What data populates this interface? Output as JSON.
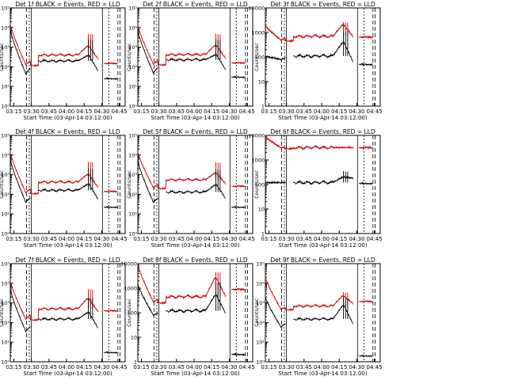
{
  "figure": {
    "date_label": "Start Time (03-Apr-14 03:12:00)",
    "colors": {
      "events": "#000000",
      "lld": "#cc0000",
      "axes": "#000000"
    }
  },
  "chart_data": [
    {
      "type": "line",
      "title": "Det  1f BLACK = Events, RED = LLD",
      "xlabel": "Start Time (03-Apr-14 03:12:00)",
      "ylabel": "Counts/sec",
      "yscale": "log",
      "ylim": [
        1,
        100000
      ],
      "ytick_labels": [
        "10⁰",
        "10¹",
        "10²",
        "10³",
        "10⁴",
        "10⁵"
      ],
      "xticks": [
        "03:15",
        "03:30",
        "03:45",
        "04:00",
        "04:15",
        "04:30",
        "04:45"
      ],
      "events": {
        "base": 200,
        "start_level": 8000,
        "dip": 45,
        "block": [
          370,
          60
        ],
        "spikes": [
          2500,
          2300,
          2300
        ],
        "tail": 25
      },
      "lld": {
        "base": 400,
        "start_level": 15000,
        "dip": 130,
        "block": [
          1100,
          250
        ],
        "spikes": [
          4800,
          4600,
          4500
        ],
        "tail": 150
      }
    },
    {
      "type": "line",
      "title": "Det  2f BLACK = Events, RED = LLD",
      "xlabel": "Start Time (03-Apr-14 03:12:00)",
      "ylabel": "Counts/sec",
      "yscale": "log",
      "ylim": [
        1,
        100000
      ],
      "ytick_labels": [
        "10⁰",
        "10¹",
        "10²",
        "10³",
        "10⁴",
        "10⁵"
      ],
      "xticks": [
        "03:15",
        "03:30",
        "03:45",
        "04:00",
        "04:15",
        "04:30",
        "04:45"
      ],
      "events": {
        "base": 230,
        "start_level": 7000,
        "dip": 50,
        "block": [
          400,
          70
        ],
        "spikes": [
          2500,
          2300,
          2300
        ],
        "tail": 30
      },
      "lld": {
        "base": 420,
        "start_level": 13000,
        "dip": 140,
        "block": [
          1200,
          260
        ],
        "spikes": [
          4800,
          4600,
          4500
        ],
        "tail": 160
      }
    },
    {
      "type": "line",
      "title": "Det  3f BLACK = Events, RED = LLD",
      "xlabel": "Start Time (03-Apr-14 03:12:00)",
      "ylabel": "Counts/sec",
      "yscale": "log",
      "ylim": [
        1,
        10000
      ],
      "ytick_labels": [
        "1",
        "10",
        "100",
        "1000",
        "10000"
      ],
      "xticks": [
        "03:15",
        "03:30",
        "03:45",
        "04:00",
        "04:15",
        "04:30",
        "04:45"
      ],
      "events": {
        "base": 110,
        "start_level": 110,
        "dip": 80,
        "block": [
          380,
          60
        ],
        "spikes": [
          1100,
          1050,
          1050
        ],
        "tail": 50
      },
      "lld": {
        "base": 700,
        "start_level": 1900,
        "dip": 500,
        "block": [
          2000,
          650
        ],
        "spikes": [
          2600,
          2500,
          2500
        ],
        "tail": 650
      }
    },
    {
      "type": "line",
      "title": "Det  4f BLACK = Events, RED = LLD",
      "xlabel": "Start Time (03-Apr-14 03:12:00)",
      "ylabel": "Counts/sec",
      "yscale": "log",
      "ylim": [
        1,
        100000
      ],
      "ytick_labels": [
        "10⁰",
        "10¹",
        "10²",
        "10³",
        "10⁴",
        "10⁵"
      ],
      "xticks": [
        "03:15",
        "03:30",
        "03:45",
        "04:00",
        "04:15",
        "04:30",
        "04:45"
      ],
      "events": {
        "base": 160,
        "start_level": 6000,
        "dip": 40,
        "block": [
          320,
          55
        ],
        "spikes": [
          2000,
          1900,
          1900
        ],
        "tail": 22
      },
      "lld": {
        "base": 420,
        "start_level": 14000,
        "dip": 120,
        "block": [
          1000,
          220
        ],
        "spikes": [
          4500,
          4300,
          4300
        ],
        "tail": 140
      }
    },
    {
      "type": "line",
      "title": "Det  5f BLACK = Events, RED = LLD",
      "xlabel": "Start Time (03-Apr-14 03:12:00)",
      "ylabel": "Counts/sec",
      "yscale": "log",
      "ylim": [
        1,
        100000
      ],
      "ytick_labels": [
        "10⁰",
        "10¹",
        "10²",
        "10³",
        "10⁴",
        "10⁵"
      ],
      "xticks": [
        "03:15",
        "03:30",
        "03:45",
        "04:00",
        "04:15",
        "04:30",
        "04:45"
      ],
      "events": {
        "base": 130,
        "start_level": 5000,
        "dip": 40,
        "block": [
          300,
          60
        ],
        "spikes": [
          1800,
          1700,
          1700
        ],
        "tail": 22
      },
      "lld": {
        "base": 550,
        "start_level": 14000,
        "dip": 220,
        "block": [
          1200,
          330
        ],
        "spikes": [
          4200,
          4000,
          4000
        ],
        "tail": 260
      }
    },
    {
      "type": "line",
      "title": "Det  6f BLACK = Events, RED = LLD",
      "xlabel": "Start Time (03-Apr-14 03:12:00)",
      "ylabel": "Counts/sec",
      "yscale": "log",
      "ylim": [
        1,
        10000
      ],
      "ytick_labels": [
        "1",
        "10",
        "100",
        "1000",
        "10000"
      ],
      "xticks": [
        "03:15",
        "03:30",
        "03:45",
        "04:00",
        "04:15",
        "04:30",
        "04:45"
      ],
      "events": {
        "base": 120,
        "start_level": 120,
        "dip": 120,
        "block": [
          200,
          180
        ],
        "spikes": [
          350,
          330,
          330
        ],
        "tail": 110
      },
      "lld": {
        "base": 3200,
        "start_level": 9000,
        "dip": 3200,
        "block": [
          3200,
          3200
        ],
        "spikes": [
          3300,
          3300,
          3300
        ],
        "tail": 3200
      }
    },
    {
      "type": "line",
      "title": "Det  7f BLACK = Events, RED = LLD",
      "xlabel": "Start Time (03-Apr-14 03:12:00)",
      "ylabel": "Counts/sec",
      "yscale": "log",
      "ylim": [
        1,
        100000
      ],
      "ytick_labels": [
        "10⁰",
        "10¹",
        "10²",
        "10³",
        "10⁴",
        "10⁵"
      ],
      "xticks": [
        "03:15",
        "03:30",
        "03:45",
        "04:00",
        "04:15",
        "04:30",
        "04:45"
      ],
      "events": {
        "base": 150,
        "start_level": 5000,
        "dip": 35,
        "block": [
          320,
          50
        ],
        "spikes": [
          1800,
          1700,
          1700
        ],
        "tail": 3
      },
      "lld": {
        "base": 500,
        "start_level": 13000,
        "dip": 150,
        "block": [
          1600,
          350
        ],
        "spikes": [
          5000,
          4800,
          4800
        ],
        "tail": 400
      }
    },
    {
      "type": "line",
      "title": "Det  8f BLACK = Events, RED = LLD",
      "xlabel": "Start Time (03-Apr-14 03:12:00)",
      "ylabel": "Counts/sec",
      "yscale": "log",
      "ylim": [
        1,
        10000
      ],
      "ytick_labels": [
        "1",
        "10",
        "100",
        "1000",
        "10000"
      ],
      "xticks": [
        "03:15",
        "03:30",
        "03:45",
        "04:00",
        "04:15",
        "04:30",
        "04:45"
      ],
      "events": {
        "base": 120,
        "start_level": 1500,
        "dip": 80,
        "block": [
          500,
          90
        ],
        "spikes": [
          1800,
          1700,
          1700
        ],
        "tail": 2
      },
      "lld": {
        "base": 450,
        "start_level": 9000,
        "dip": 280,
        "block": [
          2500,
          450
        ],
        "spikes": [
          4500,
          4300,
          4300
        ],
        "tail": 900
      }
    },
    {
      "type": "line",
      "title": "Det  9f BLACK = Events, RED = LLD",
      "xlabel": "Start Time (03-Apr-14 03:12:00)",
      "ylabel": "Counts/sec",
      "yscale": "log",
      "ylim": [
        1,
        100000
      ],
      "ytick_labels": [
        "10⁰",
        "10¹",
        "10²",
        "10³",
        "10⁴",
        "10⁵"
      ],
      "xticks": [
        "03:15",
        "03:30",
        "03:45",
        "04:00",
        "04:15",
        "04:30",
        "04:45"
      ],
      "events": {
        "base": 150,
        "start_level": 2000,
        "dip": 60,
        "block": [
          700,
          80
        ],
        "spikes": [
          1800,
          1700,
          1700
        ],
        "tail": 2
      },
      "lld": {
        "base": 700,
        "start_level": 20000,
        "dip": 500,
        "block": [
          2200,
          900
        ],
        "spikes": [
          3500,
          3300,
          3300
        ],
        "tail": 1200
      }
    }
  ]
}
